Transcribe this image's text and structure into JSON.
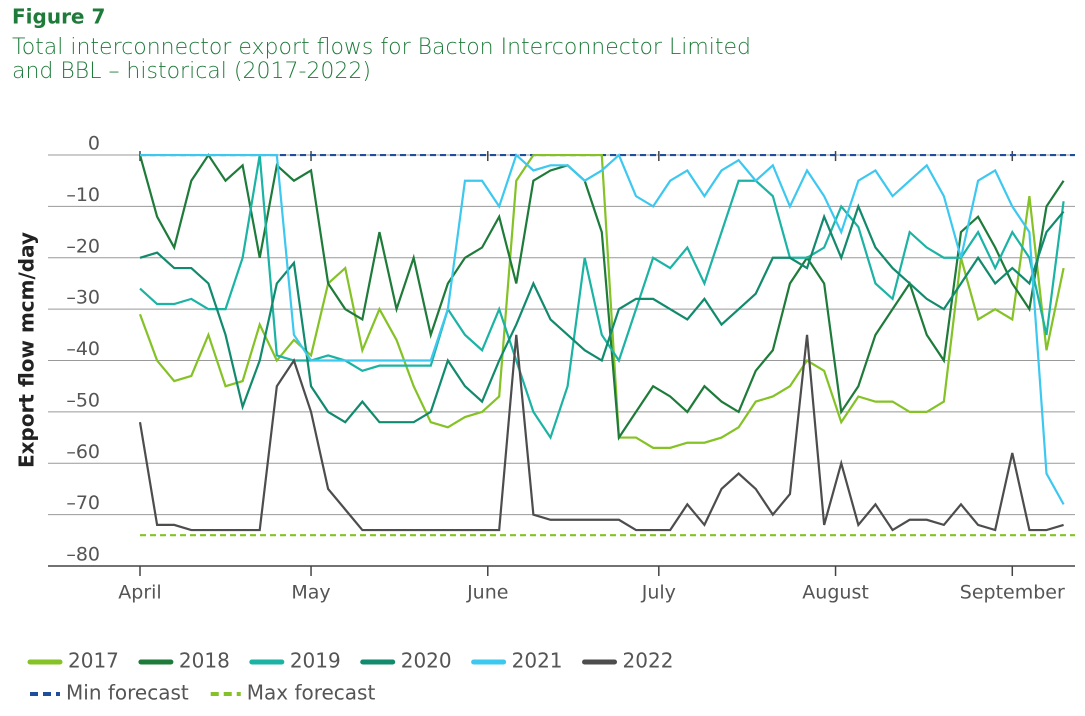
{
  "chart_data": {
    "type": "line",
    "title": "Figure 7",
    "subtitle": "Total interconnector export flows for Bacton Interconnector Limited and BBL – historical (2017-2022)",
    "y_label": "Export flow mcm/day",
    "x": [
      0,
      3,
      6,
      9,
      12,
      15,
      18,
      21,
      24,
      27,
      30,
      33,
      36,
      39,
      42,
      45,
      48,
      51,
      54,
      57,
      60,
      63,
      66,
      69,
      72,
      75,
      78,
      81,
      84,
      87,
      90,
      93,
      96,
      99,
      102,
      105,
      108,
      111,
      114,
      117,
      120,
      123,
      126,
      129,
      132,
      135,
      138,
      141,
      144,
      147,
      150,
      153,
      156,
      159,
      162
    ],
    "xlim": [
      0,
      164
    ],
    "xticks": [
      {
        "value": 0,
        "label": "April"
      },
      {
        "value": 30,
        "label": "May"
      },
      {
        "value": 61,
        "label": "June"
      },
      {
        "value": 91,
        "label": "July"
      },
      {
        "value": 122,
        "label": "August"
      },
      {
        "value": 153,
        "label": "September"
      }
    ],
    "ylim": [
      -80,
      4
    ],
    "yticks": [
      0,
      {
        "value": -10,
        "label": "–10"
      },
      {
        "value": -20,
        "label": "–20"
      },
      {
        "value": -30,
        "label": "–30"
      },
      {
        "value": -40,
        "label": "–40"
      },
      {
        "value": -50,
        "label": "–50"
      },
      {
        "value": -60,
        "label": "–60"
      },
      {
        "value": -70,
        "label": "–70"
      },
      {
        "value": -80,
        "label": "–80"
      }
    ],
    "grid": true,
    "series": [
      {
        "name": "2017",
        "color": "#84c225",
        "values": [
          -31,
          -40,
          -44,
          -43,
          -35,
          -45,
          -44,
          -33,
          -40,
          -36,
          -39,
          -25,
          -22,
          -38,
          -30,
          -36,
          -45,
          -52,
          -53,
          -51,
          -50,
          -47,
          -5,
          0,
          0,
          0,
          0,
          0,
          -55,
          -55,
          -57,
          -57,
          -56,
          -56,
          -55,
          -53,
          -48,
          -47,
          -45,
          -40,
          -42,
          -52,
          -47,
          -48,
          -48,
          -50,
          -50,
          -48,
          -20,
          -32,
          -30,
          -32,
          -8,
          -38,
          -22
        ]
      },
      {
        "name": "2018",
        "color": "#1e7b3a",
        "values": [
          0,
          -12,
          -18,
          -5,
          0,
          -5,
          -2,
          -20,
          -2,
          -5,
          -3,
          -25,
          -30,
          -32,
          -15,
          -30,
          -20,
          -35,
          -25,
          -20,
          -18,
          -12,
          -25,
          -5,
          -3,
          -2,
          -5,
          -15,
          -55,
          -50,
          -45,
          -47,
          -50,
          -45,
          -48,
          -50,
          -42,
          -38,
          -25,
          -20,
          -25,
          -50,
          -45,
          -35,
          -30,
          -25,
          -35,
          -40,
          -15,
          -12,
          -18,
          -25,
          -30,
          -10,
          -5
        ]
      },
      {
        "name": "2019",
        "color": "#1bb3a3",
        "values": [
          -26,
          -29,
          -29,
          -28,
          -30,
          -30,
          -20,
          0,
          -39,
          -40,
          -40,
          -39,
          -40,
          -42,
          -41,
          -41,
          -41,
          -41,
          -30,
          -35,
          -38,
          -30,
          -40,
          -50,
          -55,
          -45,
          -20,
          -35,
          -40,
          -30,
          -20,
          -22,
          -18,
          -25,
          -15,
          -5,
          -5,
          -8,
          -20,
          -20,
          -18,
          -10,
          -14,
          -25,
          -28,
          -15,
          -18,
          -20,
          -20,
          -15,
          -22,
          -15,
          -20,
          -35,
          -9
        ]
      },
      {
        "name": "2020",
        "color": "#128a6e",
        "values": [
          -20,
          -19,
          -22,
          -22,
          -25,
          -35,
          -49,
          -40,
          -25,
          -21,
          -45,
          -50,
          -52,
          -48,
          -52,
          -52,
          -52,
          -50,
          -40,
          -45,
          -48,
          -40,
          -33,
          -25,
          -32,
          -35,
          -38,
          -40,
          -30,
          -28,
          -28,
          -30,
          -32,
          -28,
          -33,
          -30,
          -27,
          -20,
          -20,
          -22,
          -12,
          -20,
          -10,
          -18,
          -22,
          -25,
          -28,
          -30,
          -25,
          -20,
          -25,
          -22,
          -25,
          -15,
          -11
        ]
      },
      {
        "name": "2021",
        "color": "#3dc8f0",
        "values": [
          0,
          0,
          0,
          0,
          0,
          0,
          0,
          0,
          0,
          -35,
          -40,
          -40,
          -40,
          -40,
          -40,
          -40,
          -40,
          -40,
          -30,
          -5,
          -5,
          -10,
          0,
          -3,
          -2,
          -2,
          -5,
          -3,
          0,
          -8,
          -10,
          -5,
          -3,
          -8,
          -3,
          -1,
          -5,
          -2,
          -10,
          -3,
          -8,
          -15,
          -5,
          -3,
          -8,
          -5,
          -2,
          -8,
          -20,
          -5,
          -3,
          -10,
          -15,
          -62,
          -68
        ]
      },
      {
        "name": "2022",
        "color": "#4d4d4d",
        "values": [
          -52,
          -72,
          -72,
          -73,
          -73,
          -73,
          -73,
          -73,
          -45,
          -40,
          -50,
          -65,
          -69,
          -73,
          -73,
          -73,
          -73,
          -73,
          -73,
          -73,
          -73,
          -73,
          -35,
          -70,
          -71,
          -71,
          -71,
          -71,
          -71,
          -73,
          -73,
          -73,
          -68,
          -72,
          -65,
          -62,
          -65,
          -70,
          -66,
          -35,
          -72,
          -60,
          -72,
          -68,
          -73,
          -71,
          -71,
          -72,
          -68,
          -72,
          -73,
          -58,
          -73,
          -73,
          -72
        ]
      }
    ],
    "forecasts": [
      {
        "name": "Min forecast",
        "color": "#1f4e9c",
        "dashed": true,
        "x": [
          0,
          164
        ],
        "values": [
          0,
          0
        ]
      },
      {
        "name": "Max forecast",
        "color": "#84c225",
        "dashed": true,
        "x": [
          0,
          164
        ],
        "values": [
          -74,
          -74
        ]
      }
    ]
  }
}
